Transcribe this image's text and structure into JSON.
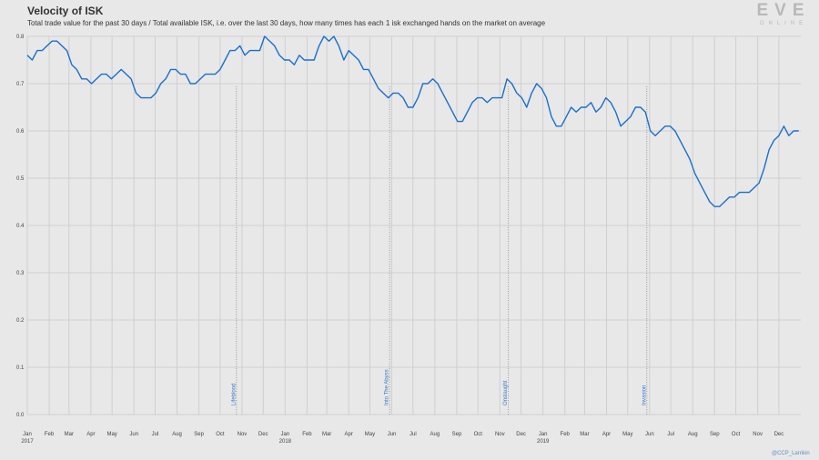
{
  "header": {
    "title": "Velocity of ISK",
    "subtitle": "Total trade value for the past 30 days / Total available ISK, i.e. over the last 30 days, how many times has each 1 isk exchanged hands on the market on average"
  },
  "logo": {
    "text": "EVE",
    "subtext": "ONLINE"
  },
  "credit": "@CCP_Larrikin",
  "colors": {
    "line": "#1a6fcc",
    "grid": "#cfcfcf",
    "annotation_line": "#999999",
    "annotation_text": "#3a7ac8",
    "background": "#e8e8e8"
  },
  "chart_data": {
    "type": "line",
    "title": "Velocity of ISK",
    "xlabel": "",
    "ylabel": "",
    "ylim": [
      0,
      0.8
    ],
    "yticks": [
      "0.0",
      "0.1",
      "0.2",
      "0.3",
      "0.4",
      "0.5",
      "0.6",
      "0.7",
      "0.8"
    ],
    "grid": true,
    "xticks": [
      {
        "date": "2017-01-01",
        "label": "Jan",
        "year": "2017"
      },
      {
        "date": "2017-02-01",
        "label": "Feb",
        "year": ""
      },
      {
        "date": "2017-03-01",
        "label": "Mar",
        "year": ""
      },
      {
        "date": "2017-04-01",
        "label": "Apr",
        "year": ""
      },
      {
        "date": "2017-05-01",
        "label": "May",
        "year": ""
      },
      {
        "date": "2017-06-01",
        "label": "Jun",
        "year": ""
      },
      {
        "date": "2017-07-01",
        "label": "Jul",
        "year": ""
      },
      {
        "date": "2017-08-01",
        "label": "Aug",
        "year": ""
      },
      {
        "date": "2017-09-01",
        "label": "Sep",
        "year": ""
      },
      {
        "date": "2017-10-01",
        "label": "Oct",
        "year": ""
      },
      {
        "date": "2017-11-01",
        "label": "Nov",
        "year": ""
      },
      {
        "date": "2017-12-01",
        "label": "Dec",
        "year": ""
      },
      {
        "date": "2018-01-01",
        "label": "Jan",
        "year": "2018"
      },
      {
        "date": "2018-02-01",
        "label": "Feb",
        "year": ""
      },
      {
        "date": "2018-03-01",
        "label": "Mar",
        "year": ""
      },
      {
        "date": "2018-04-01",
        "label": "Apr",
        "year": ""
      },
      {
        "date": "2018-05-01",
        "label": "May",
        "year": ""
      },
      {
        "date": "2018-06-01",
        "label": "Jun",
        "year": ""
      },
      {
        "date": "2018-07-01",
        "label": "Jul",
        "year": ""
      },
      {
        "date": "2018-08-01",
        "label": "Aug",
        "year": ""
      },
      {
        "date": "2018-09-01",
        "label": "Sep",
        "year": ""
      },
      {
        "date": "2018-10-01",
        "label": "Oct",
        "year": ""
      },
      {
        "date": "2018-11-01",
        "label": "Nov",
        "year": ""
      },
      {
        "date": "2018-12-01",
        "label": "Dec",
        "year": ""
      },
      {
        "date": "2019-01-01",
        "label": "Jan",
        "year": "2019"
      },
      {
        "date": "2019-02-01",
        "label": "Feb",
        "year": ""
      },
      {
        "date": "2019-03-01",
        "label": "Mar",
        "year": ""
      },
      {
        "date": "2019-04-01",
        "label": "Apr",
        "year": ""
      },
      {
        "date": "2019-05-01",
        "label": "May",
        "year": ""
      },
      {
        "date": "2019-06-01",
        "label": "Jun",
        "year": ""
      },
      {
        "date": "2019-07-01",
        "label": "Jul",
        "year": ""
      },
      {
        "date": "2019-08-01",
        "label": "Aug",
        "year": ""
      },
      {
        "date": "2019-09-01",
        "label": "Sep",
        "year": ""
      },
      {
        "date": "2019-10-01",
        "label": "Oct",
        "year": ""
      },
      {
        "date": "2019-11-01",
        "label": "Nov",
        "year": ""
      },
      {
        "date": "2019-12-01",
        "label": "Dec",
        "year": ""
      }
    ],
    "annotations": [
      {
        "date": "2017-10-24",
        "label": "Lifeblood"
      },
      {
        "date": "2018-05-29",
        "label": "Into The Abyss"
      },
      {
        "date": "2018-11-13",
        "label": "Onslaught"
      },
      {
        "date": "2019-05-28",
        "label": "Invasion"
      }
    ],
    "series": [
      {
        "points": [
          [
            "2017-01-01",
            0.76
          ],
          [
            "2017-01-08",
            0.75
          ],
          [
            "2017-01-15",
            0.77
          ],
          [
            "2017-01-22",
            0.77
          ],
          [
            "2017-01-29",
            0.78
          ],
          [
            "2017-02-05",
            0.79
          ],
          [
            "2017-02-12",
            0.79
          ],
          [
            "2017-02-19",
            0.78
          ],
          [
            "2017-02-26",
            0.77
          ],
          [
            "2017-03-05",
            0.74
          ],
          [
            "2017-03-12",
            0.73
          ],
          [
            "2017-03-19",
            0.71
          ],
          [
            "2017-03-26",
            0.71
          ],
          [
            "2017-04-02",
            0.7
          ],
          [
            "2017-04-09",
            0.71
          ],
          [
            "2017-04-16",
            0.72
          ],
          [
            "2017-04-23",
            0.72
          ],
          [
            "2017-04-30",
            0.71
          ],
          [
            "2017-05-07",
            0.72
          ],
          [
            "2017-05-14",
            0.73
          ],
          [
            "2017-05-21",
            0.72
          ],
          [
            "2017-05-28",
            0.71
          ],
          [
            "2017-06-04",
            0.68
          ],
          [
            "2017-06-11",
            0.67
          ],
          [
            "2017-06-18",
            0.67
          ],
          [
            "2017-06-25",
            0.67
          ],
          [
            "2017-07-02",
            0.68
          ],
          [
            "2017-07-09",
            0.7
          ],
          [
            "2017-07-16",
            0.71
          ],
          [
            "2017-07-23",
            0.73
          ],
          [
            "2017-07-30",
            0.73
          ],
          [
            "2017-08-06",
            0.72
          ],
          [
            "2017-08-13",
            0.72
          ],
          [
            "2017-08-20",
            0.7
          ],
          [
            "2017-08-27",
            0.7
          ],
          [
            "2017-09-03",
            0.71
          ],
          [
            "2017-09-10",
            0.72
          ],
          [
            "2017-09-17",
            0.72
          ],
          [
            "2017-09-24",
            0.72
          ],
          [
            "2017-10-01",
            0.73
          ],
          [
            "2017-10-08",
            0.75
          ],
          [
            "2017-10-15",
            0.77
          ],
          [
            "2017-10-22",
            0.77
          ],
          [
            "2017-10-29",
            0.78
          ],
          [
            "2017-11-05",
            0.76
          ],
          [
            "2017-11-12",
            0.77
          ],
          [
            "2017-11-19",
            0.77
          ],
          [
            "2017-11-26",
            0.77
          ],
          [
            "2017-12-03",
            0.8
          ],
          [
            "2017-12-10",
            0.79
          ],
          [
            "2017-12-17",
            0.78
          ],
          [
            "2017-12-24",
            0.76
          ],
          [
            "2017-12-31",
            0.75
          ],
          [
            "2018-01-07",
            0.75
          ],
          [
            "2018-01-14",
            0.74
          ],
          [
            "2018-01-21",
            0.76
          ],
          [
            "2018-01-28",
            0.75
          ],
          [
            "2018-02-04",
            0.75
          ],
          [
            "2018-02-11",
            0.75
          ],
          [
            "2018-02-18",
            0.78
          ],
          [
            "2018-02-25",
            0.8
          ],
          [
            "2018-03-04",
            0.79
          ],
          [
            "2018-03-11",
            0.8
          ],
          [
            "2018-03-18",
            0.78
          ],
          [
            "2018-03-25",
            0.75
          ],
          [
            "2018-04-01",
            0.77
          ],
          [
            "2018-04-08",
            0.76
          ],
          [
            "2018-04-15",
            0.75
          ],
          [
            "2018-04-22",
            0.73
          ],
          [
            "2018-04-29",
            0.73
          ],
          [
            "2018-05-06",
            0.71
          ],
          [
            "2018-05-13",
            0.69
          ],
          [
            "2018-05-20",
            0.68
          ],
          [
            "2018-05-27",
            0.67
          ],
          [
            "2018-06-03",
            0.68
          ],
          [
            "2018-06-10",
            0.68
          ],
          [
            "2018-06-17",
            0.67
          ],
          [
            "2018-06-24",
            0.65
          ],
          [
            "2018-07-01",
            0.65
          ],
          [
            "2018-07-08",
            0.67
          ],
          [
            "2018-07-15",
            0.7
          ],
          [
            "2018-07-22",
            0.7
          ],
          [
            "2018-07-29",
            0.71
          ],
          [
            "2018-08-05",
            0.7
          ],
          [
            "2018-08-12",
            0.68
          ],
          [
            "2018-08-19",
            0.66
          ],
          [
            "2018-08-26",
            0.64
          ],
          [
            "2018-09-02",
            0.62
          ],
          [
            "2018-09-09",
            0.62
          ],
          [
            "2018-09-16",
            0.64
          ],
          [
            "2018-09-23",
            0.66
          ],
          [
            "2018-09-30",
            0.67
          ],
          [
            "2018-10-07",
            0.67
          ],
          [
            "2018-10-14",
            0.66
          ],
          [
            "2018-10-21",
            0.67
          ],
          [
            "2018-10-28",
            0.67
          ],
          [
            "2018-11-04",
            0.67
          ],
          [
            "2018-11-11",
            0.71
          ],
          [
            "2018-11-18",
            0.7
          ],
          [
            "2018-11-25",
            0.68
          ],
          [
            "2018-12-02",
            0.67
          ],
          [
            "2018-12-09",
            0.65
          ],
          [
            "2018-12-16",
            0.68
          ],
          [
            "2018-12-23",
            0.7
          ],
          [
            "2018-12-30",
            0.69
          ],
          [
            "2019-01-06",
            0.67
          ],
          [
            "2019-01-13",
            0.63
          ],
          [
            "2019-01-20",
            0.61
          ],
          [
            "2019-01-27",
            0.61
          ],
          [
            "2019-02-03",
            0.63
          ],
          [
            "2019-02-10",
            0.65
          ],
          [
            "2019-02-17",
            0.64
          ],
          [
            "2019-02-24",
            0.65
          ],
          [
            "2019-03-03",
            0.65
          ],
          [
            "2019-03-10",
            0.66
          ],
          [
            "2019-03-17",
            0.64
          ],
          [
            "2019-03-24",
            0.65
          ],
          [
            "2019-03-31",
            0.67
          ],
          [
            "2019-04-07",
            0.66
          ],
          [
            "2019-04-14",
            0.64
          ],
          [
            "2019-04-21",
            0.61
          ],
          [
            "2019-04-28",
            0.62
          ],
          [
            "2019-05-05",
            0.63
          ],
          [
            "2019-05-12",
            0.65
          ],
          [
            "2019-05-19",
            0.65
          ],
          [
            "2019-05-26",
            0.64
          ],
          [
            "2019-06-02",
            0.6
          ],
          [
            "2019-06-09",
            0.59
          ],
          [
            "2019-06-16",
            0.6
          ],
          [
            "2019-06-23",
            0.61
          ],
          [
            "2019-06-30",
            0.61
          ],
          [
            "2019-07-07",
            0.6
          ],
          [
            "2019-07-14",
            0.58
          ],
          [
            "2019-07-21",
            0.56
          ],
          [
            "2019-07-28",
            0.54
          ],
          [
            "2019-08-04",
            0.51
          ],
          [
            "2019-08-11",
            0.49
          ],
          [
            "2019-08-18",
            0.47
          ],
          [
            "2019-08-25",
            0.45
          ],
          [
            "2019-09-01",
            0.44
          ],
          [
            "2019-09-08",
            0.44
          ],
          [
            "2019-09-15",
            0.45
          ],
          [
            "2019-09-22",
            0.46
          ],
          [
            "2019-09-29",
            0.46
          ],
          [
            "2019-10-06",
            0.47
          ],
          [
            "2019-10-13",
            0.47
          ],
          [
            "2019-10-20",
            0.47
          ],
          [
            "2019-10-27",
            0.48
          ],
          [
            "2019-11-03",
            0.49
          ],
          [
            "2019-11-10",
            0.52
          ],
          [
            "2019-11-17",
            0.56
          ],
          [
            "2019-11-24",
            0.58
          ],
          [
            "2019-12-01",
            0.59
          ],
          [
            "2019-12-08",
            0.61
          ],
          [
            "2019-12-15",
            0.59
          ],
          [
            "2019-12-22",
            0.6
          ],
          [
            "2019-12-29",
            0.6
          ]
        ]
      }
    ]
  }
}
